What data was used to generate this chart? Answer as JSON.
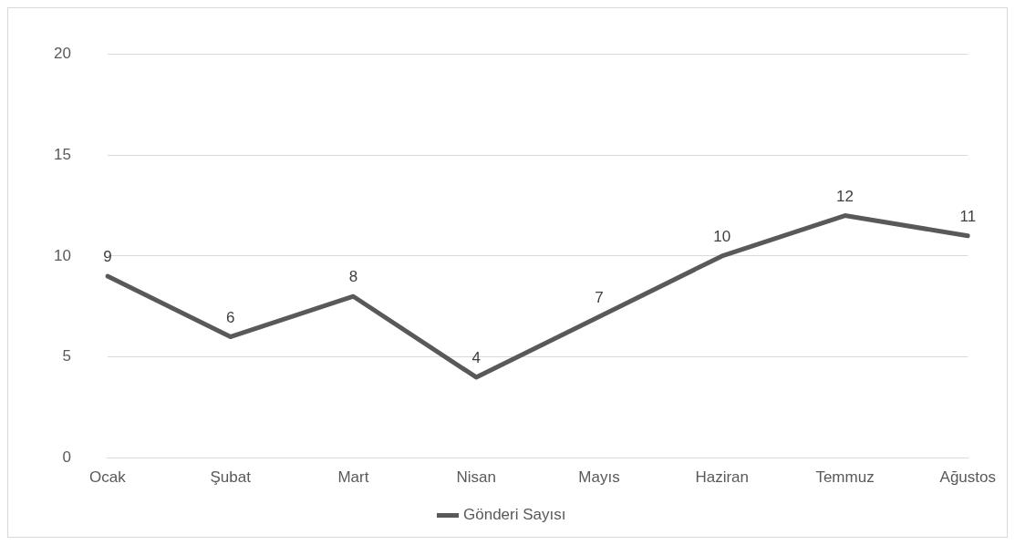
{
  "chart_data": {
    "type": "line",
    "categories": [
      "Ocak",
      "Şubat",
      "Mart",
      "Nisan",
      "Mayıs",
      "Haziran",
      "Temmuz",
      "Ağustos"
    ],
    "series": [
      {
        "name": "Gönderi Sayısı",
        "color": "#595959",
        "values": [
          9,
          6,
          8,
          4,
          7,
          10,
          12,
          11
        ]
      }
    ],
    "ylim": [
      0,
      20
    ],
    "yticks": [
      0,
      5,
      10,
      15,
      20
    ],
    "grid": "y",
    "legend": "bottom",
    "data_labels": true,
    "marker": "none",
    "line_style": "solid"
  }
}
